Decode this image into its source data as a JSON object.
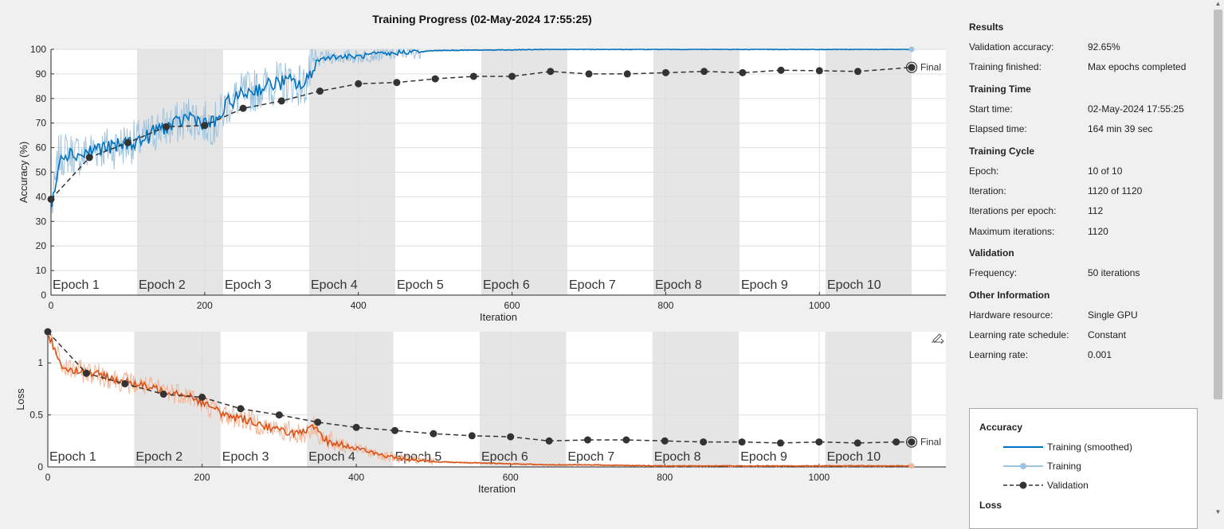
{
  "window": {
    "title": "Training Progress (02-May-2024 17:55:25)"
  },
  "colors": {
    "accuracy_smoothed": "#0072bd",
    "accuracy_raw": "#9ec3df",
    "loss_smoothed": "#d95319",
    "loss_raw": "#f1b79a",
    "validation": "#333333",
    "epoch_shade": "#e5e5e5"
  },
  "accuracy_chart": {
    "ylabel": "Accuracy (%)",
    "xlabel": "Iteration",
    "xticks": [
      "0",
      "200",
      "400",
      "600",
      "800",
      "1000"
    ],
    "yticks": [
      "0",
      "10",
      "20",
      "30",
      "40",
      "50",
      "60",
      "70",
      "80",
      "90",
      "100"
    ],
    "final_label": "Final"
  },
  "loss_chart": {
    "ylabel": "Loss",
    "xlabel": "Iteration",
    "xticks": [
      "0",
      "200",
      "400",
      "600",
      "800",
      "1000"
    ],
    "yticks": [
      "0",
      "0.5",
      "1"
    ],
    "final_label": "Final"
  },
  "epoch_labels": [
    "Epoch 1",
    "Epoch 2",
    "Epoch 3",
    "Epoch 4",
    "Epoch 5",
    "Epoch 6",
    "Epoch 7",
    "Epoch 8",
    "Epoch 9",
    "Epoch 10"
  ],
  "chart_data": [
    {
      "type": "line",
      "title": "",
      "xlabel": "Iteration",
      "ylabel": "Accuracy (%)",
      "xlim": [
        0,
        1120
      ],
      "ylim": [
        0,
        100
      ],
      "grid": true,
      "series": [
        {
          "name": "Training (smoothed)",
          "x": [
            0,
            10,
            20,
            40,
            60,
            80,
            100,
            120,
            140,
            160,
            180,
            200,
            215,
            230,
            250,
            270,
            290,
            310,
            330,
            345,
            360,
            380,
            400,
            420,
            440,
            460,
            480,
            500,
            550,
            600,
            650,
            700,
            1120
          ],
          "values": [
            32,
            56,
            58,
            57,
            60,
            60,
            62,
            63,
            68,
            69,
            73,
            70,
            70,
            78,
            82,
            84,
            86,
            87,
            85,
            95,
            97,
            97,
            97,
            98,
            98,
            99,
            99,
            99.5,
            99.7,
            99.8,
            100,
            100,
            100
          ]
        },
        {
          "name": "Validation",
          "x": [
            0,
            50,
            100,
            150,
            200,
            250,
            300,
            350,
            400,
            450,
            500,
            550,
            600,
            650,
            700,
            750,
            800,
            850,
            900,
            950,
            1000,
            1050,
            1120
          ],
          "values": [
            39,
            56,
            62,
            68.5,
            69,
            76,
            79,
            83,
            86,
            86.5,
            88,
            89,
            89,
            91,
            90,
            90,
            90.5,
            91,
            90.5,
            91.5,
            91.3,
            91,
            92.65
          ]
        }
      ],
      "epochs": {
        "count": 10,
        "iterations_per_epoch": 112
      }
    },
    {
      "type": "line",
      "title": "",
      "xlabel": "Iteration",
      "ylabel": "Loss",
      "xlim": [
        0,
        1120
      ],
      "ylim": [
        0,
        1.3
      ],
      "grid": true,
      "series": [
        {
          "name": "Training (smoothed)",
          "x": [
            0,
            20,
            60,
            100,
            140,
            180,
            200,
            230,
            260,
            300,
            330,
            345,
            360,
            400,
            440,
            460,
            500,
            550,
            600,
            650,
            700,
            800,
            1120
          ],
          "values": [
            1.28,
            0.95,
            0.9,
            0.82,
            0.75,
            0.7,
            0.62,
            0.5,
            0.45,
            0.35,
            0.32,
            0.38,
            0.25,
            0.18,
            0.1,
            0.08,
            0.05,
            0.04,
            0.03,
            0.02,
            0.02,
            0.01,
            0.01
          ]
        },
        {
          "name": "Validation",
          "x": [
            0,
            50,
            100,
            150,
            200,
            250,
            300,
            350,
            400,
            450,
            500,
            550,
            600,
            650,
            700,
            750,
            800,
            850,
            900,
            950,
            1000,
            1050,
            1100,
            1120
          ],
          "values": [
            1.3,
            0.9,
            0.8,
            0.7,
            0.67,
            0.56,
            0.5,
            0.43,
            0.38,
            0.35,
            0.32,
            0.3,
            0.29,
            0.25,
            0.26,
            0.26,
            0.25,
            0.24,
            0.24,
            0.23,
            0.24,
            0.23,
            0.24,
            0.24
          ]
        }
      ]
    }
  ],
  "results": {
    "results_title": "Results",
    "validation_accuracy_label": "Validation accuracy:",
    "validation_accuracy": "92.65%",
    "training_finished_label": "Training finished:",
    "training_finished": "Max epochs completed",
    "training_time_title": "Training Time",
    "start_time_label": "Start time:",
    "start_time": "02-May-2024 17:55:25",
    "elapsed_time_label": "Elapsed time:",
    "elapsed_time": "164 min 39 sec",
    "training_cycle_title": "Training Cycle",
    "epoch_label": "Epoch:",
    "epoch": "10 of 10",
    "iteration_label": "Iteration:",
    "iteration": "1120 of 1120",
    "iterations_per_epoch_label": "Iterations per epoch:",
    "iterations_per_epoch": "112",
    "max_iterations_label": "Maximum iterations:",
    "max_iterations": "1120",
    "validation_title": "Validation",
    "frequency_label": "Frequency:",
    "frequency": "50 iterations",
    "other_info_title": "Other Information",
    "hardware_label": "Hardware resource:",
    "hardware": "Single GPU",
    "lr_schedule_label": "Learning rate schedule:",
    "lr_schedule": "Constant",
    "lr_label": "Learning rate:",
    "lr": "0.001"
  },
  "legend": {
    "accuracy_title": "Accuracy",
    "smoothed": "Training (smoothed)",
    "training": "Training",
    "validation": "Validation",
    "loss_title": "Loss"
  },
  "icons": {
    "export": "export-plot-icon",
    "final_marker": "final-marker-icon"
  }
}
